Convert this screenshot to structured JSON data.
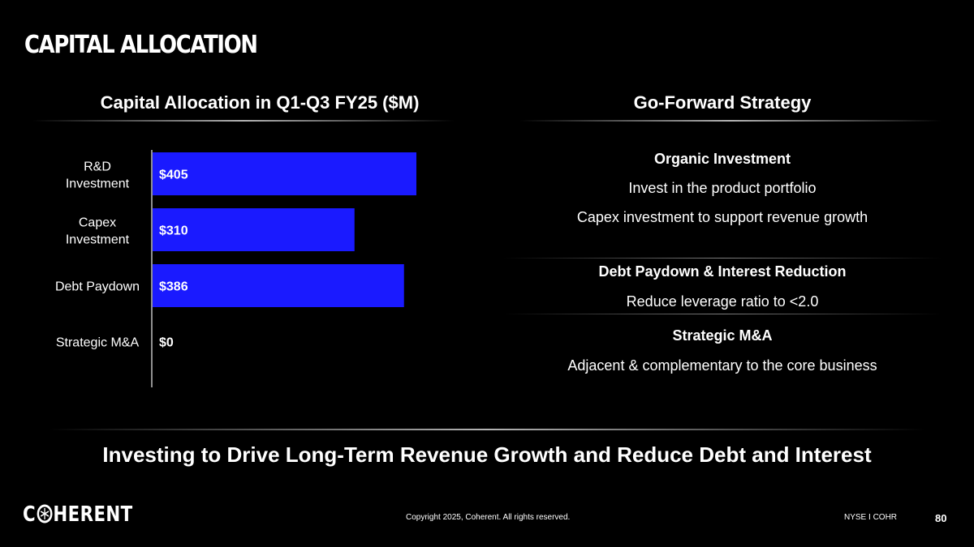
{
  "slide": {
    "title": "CAPITAL ALLOCATION",
    "left_heading": "Capital Allocation in Q1-Q3 FY25 ($M)",
    "right_heading": "Go-Forward Strategy",
    "tagline": "Investing to Drive Long-Term Revenue Growth and Reduce Debt and Interest"
  },
  "chart_data": {
    "type": "bar",
    "orientation": "horizontal",
    "title": "Capital Allocation in Q1-Q3 FY25 ($M)",
    "categories": [
      [
        "R&D",
        "Investment"
      ],
      [
        "Capex",
        "Investment"
      ],
      [
        "Debt Paydown"
      ],
      [
        "Strategic M&A"
      ]
    ],
    "values": [
      405,
      310,
      386,
      0
    ],
    "labels": [
      "$405",
      "$310",
      "$386",
      "$0"
    ],
    "xlim": [
      0,
      405
    ],
    "bar_color": "#1a1aff",
    "grid": false,
    "legend": "none"
  },
  "strategy": {
    "sections": [
      {
        "title": "Organic Investment",
        "lines": [
          "Invest in the product portfolio",
          "Capex investment to support revenue growth"
        ]
      },
      {
        "title": "Debt Paydown & Interest Reduction",
        "lines": [
          "Reduce leverage ratio to <2.0"
        ]
      },
      {
        "title": "Strategic M&A",
        "lines": [
          "Adjacent & complementary to the core business"
        ]
      }
    ]
  },
  "footer": {
    "logo_text": "COHERENT",
    "logo_icon": "coherent-o-icon",
    "copyright": "Copyright 2025, Coherent. All rights reserved.",
    "ticker": "NYSE I COHR",
    "page_number": "80"
  },
  "colors": {
    "background": "#000000",
    "text": "#ffffff",
    "bar": "#1a1aff"
  }
}
